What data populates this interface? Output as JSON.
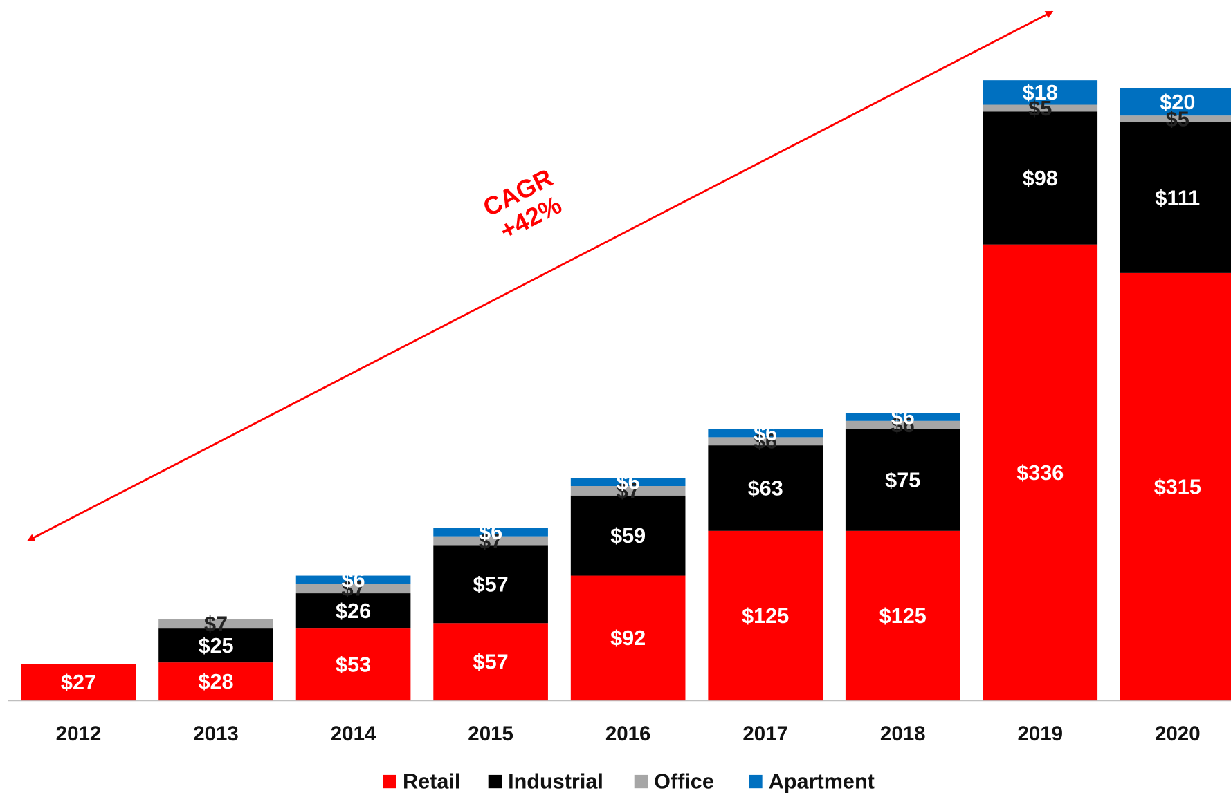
{
  "chart_data": {
    "type": "stacked_bar",
    "categories": [
      "2012",
      "2013",
      "2014",
      "2015",
      "2016",
      "2017",
      "2018",
      "2019",
      "2020"
    ],
    "series": [
      {
        "name": "Retail",
        "color": "#ff0000",
        "values": [
          27,
          28,
          53,
          57,
          92,
          125,
          125,
          336,
          315
        ],
        "value_labels": [
          "$27",
          "$28",
          "$53",
          "$57",
          "$92",
          "$125",
          "$125",
          "$336",
          "$315"
        ]
      },
      {
        "name": "Industrial",
        "color": "#000000",
        "values": [
          null,
          25,
          26,
          57,
          59,
          63,
          75,
          98,
          111
        ],
        "value_labels": [
          null,
          "$25",
          "$26",
          "$57",
          "$59",
          "$63",
          "$75",
          "$98",
          "$111"
        ]
      },
      {
        "name": "Office",
        "color": "#a6a6a6",
        "values": [
          null,
          7,
          7,
          7,
          7,
          6,
          6,
          5,
          5
        ],
        "value_labels": [
          null,
          "$7",
          "$7",
          "$7",
          "$7",
          "$6",
          "$6",
          "$5",
          "$5"
        ]
      },
      {
        "name": "Apartment",
        "color": "#0070c0",
        "values": [
          null,
          null,
          6,
          6,
          6,
          6,
          6,
          18,
          20
        ],
        "value_labels": [
          null,
          null,
          "$6",
          "$6",
          "$6",
          "$6",
          "$6",
          "$18",
          "$20"
        ]
      }
    ],
    "annotations": [
      "CAGR",
      "+42%"
    ]
  }
}
